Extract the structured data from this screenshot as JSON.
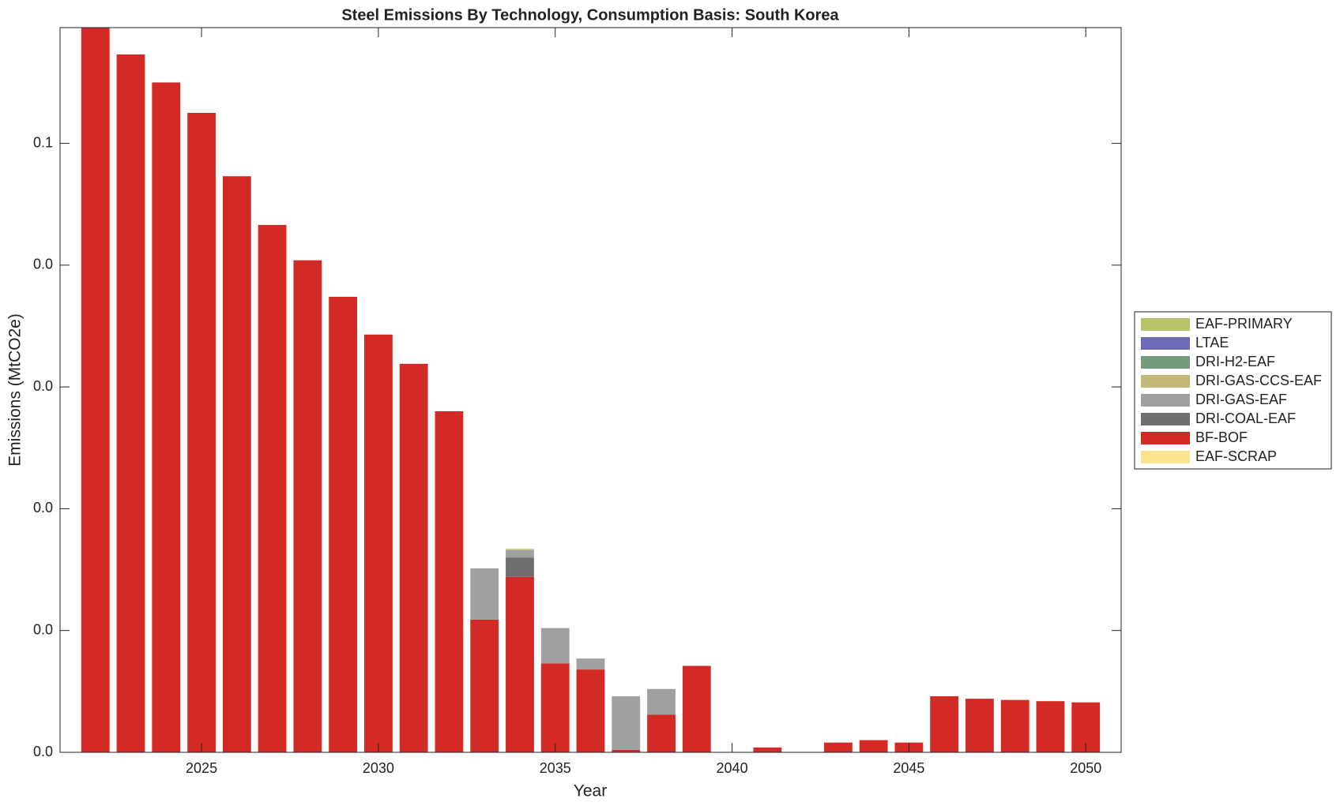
{
  "chart_data": {
    "type": "stacked_bar",
    "title": "Steel Emissions By Technology, Consumption Basis: South Korea",
    "xlabel": "Year",
    "ylabel": "Emissions (MtCO2e)",
    "x": [
      2022,
      2023,
      2024,
      2025,
      2026,
      2027,
      2028,
      2029,
      2030,
      2031,
      2032,
      2033,
      2034,
      2035,
      2036,
      2037,
      2038,
      2039,
      2040,
      2041,
      2042,
      2043,
      2044,
      2045,
      2046,
      2047,
      2048,
      2049,
      2050
    ],
    "xlim": [
      2021,
      2051
    ],
    "xticks": [
      2025,
      2030,
      2035,
      2040,
      2045,
      2050
    ],
    "ylim": [
      0,
      0.0595
    ],
    "yticks": [
      {
        "value": 0,
        "label": "0.0"
      },
      {
        "value": 0.01,
        "label": "0.0"
      },
      {
        "value": 0.02,
        "label": "0.0"
      },
      {
        "value": 0.03,
        "label": "0.0"
      },
      {
        "value": 0.04,
        "label": "0.0"
      },
      {
        "value": 0.05,
        "label": "0.1"
      }
    ],
    "legend": "outside-right",
    "series": [
      {
        "name": "EAF-PRIMARY",
        "color": "#b9c46a",
        "values": [
          0,
          0,
          0,
          0,
          0,
          0,
          0,
          0,
          0,
          0,
          0,
          0,
          0,
          0,
          0,
          0,
          0,
          0,
          0,
          0,
          0,
          0,
          0,
          0,
          0,
          0,
          0,
          0,
          0
        ]
      },
      {
        "name": "LTAE",
        "color": "#6e6ab6",
        "values": [
          0,
          0,
          0,
          0,
          0,
          0,
          0,
          0,
          0,
          0,
          0,
          0,
          0,
          0,
          0,
          0,
          0,
          0,
          0,
          0,
          0,
          0,
          0,
          0,
          0,
          0,
          0,
          0,
          0
        ]
      },
      {
        "name": "DRI-H2-EAF",
        "color": "#759a7c",
        "values": [
          0,
          0,
          0,
          0,
          0,
          0,
          0,
          0,
          0,
          0,
          0,
          0,
          0,
          0,
          0,
          0,
          0,
          0,
          0,
          0,
          0,
          0,
          0,
          0,
          0,
          0,
          0,
          0,
          0
        ]
      },
      {
        "name": "DRI-GAS-CCS-EAF",
        "color": "#c3b878",
        "values": [
          0,
          0,
          0,
          0,
          0,
          0,
          0,
          0,
          0,
          0,
          0,
          0,
          0.0001,
          0,
          0,
          0,
          0,
          0,
          0,
          0,
          0,
          0,
          0,
          0,
          0,
          0,
          0,
          0,
          0
        ]
      },
      {
        "name": "DRI-GAS-EAF",
        "color": "#a0a0a0",
        "values": [
          0,
          0,
          0,
          0,
          0,
          0,
          0,
          0,
          0,
          0,
          0,
          0.0042,
          0.0006,
          0.0029,
          0.0009,
          0.0044,
          0.0021,
          0,
          0,
          0,
          0,
          0,
          0,
          0,
          0,
          0,
          0,
          0,
          0
        ]
      },
      {
        "name": "DRI-COAL-EAF",
        "color": "#6f6f6f",
        "values": [
          0,
          0,
          0,
          0,
          0,
          0,
          0,
          0,
          0,
          0,
          0,
          0,
          0.0016,
          0,
          0,
          0,
          0,
          0,
          0,
          0,
          0,
          0,
          0,
          0,
          0,
          0,
          0,
          0,
          0
        ]
      },
      {
        "name": "BF-BOF",
        "color": "#d42a25",
        "values": [
          0.0595,
          0.0573,
          0.055,
          0.0525,
          0.0473,
          0.0433,
          0.0404,
          0.0374,
          0.0343,
          0.0319,
          0.028,
          0.0109,
          0.0144,
          0.0073,
          0.0068,
          0.0002,
          0.0031,
          0.0071,
          0,
          0.0004,
          0,
          0.0008,
          0.001,
          0.0008,
          0.0046,
          0.0044,
          0.0043,
          0.0042,
          0.0041
        ]
      },
      {
        "name": "EAF-SCRAP",
        "color": "#fde38f",
        "values": [
          0,
          0,
          0,
          0,
          0,
          0,
          0,
          0,
          0,
          0,
          0,
          0,
          0,
          0,
          0,
          0,
          0,
          0,
          0,
          0,
          0,
          0,
          0,
          0,
          0,
          0,
          0,
          0,
          0
        ]
      }
    ]
  }
}
